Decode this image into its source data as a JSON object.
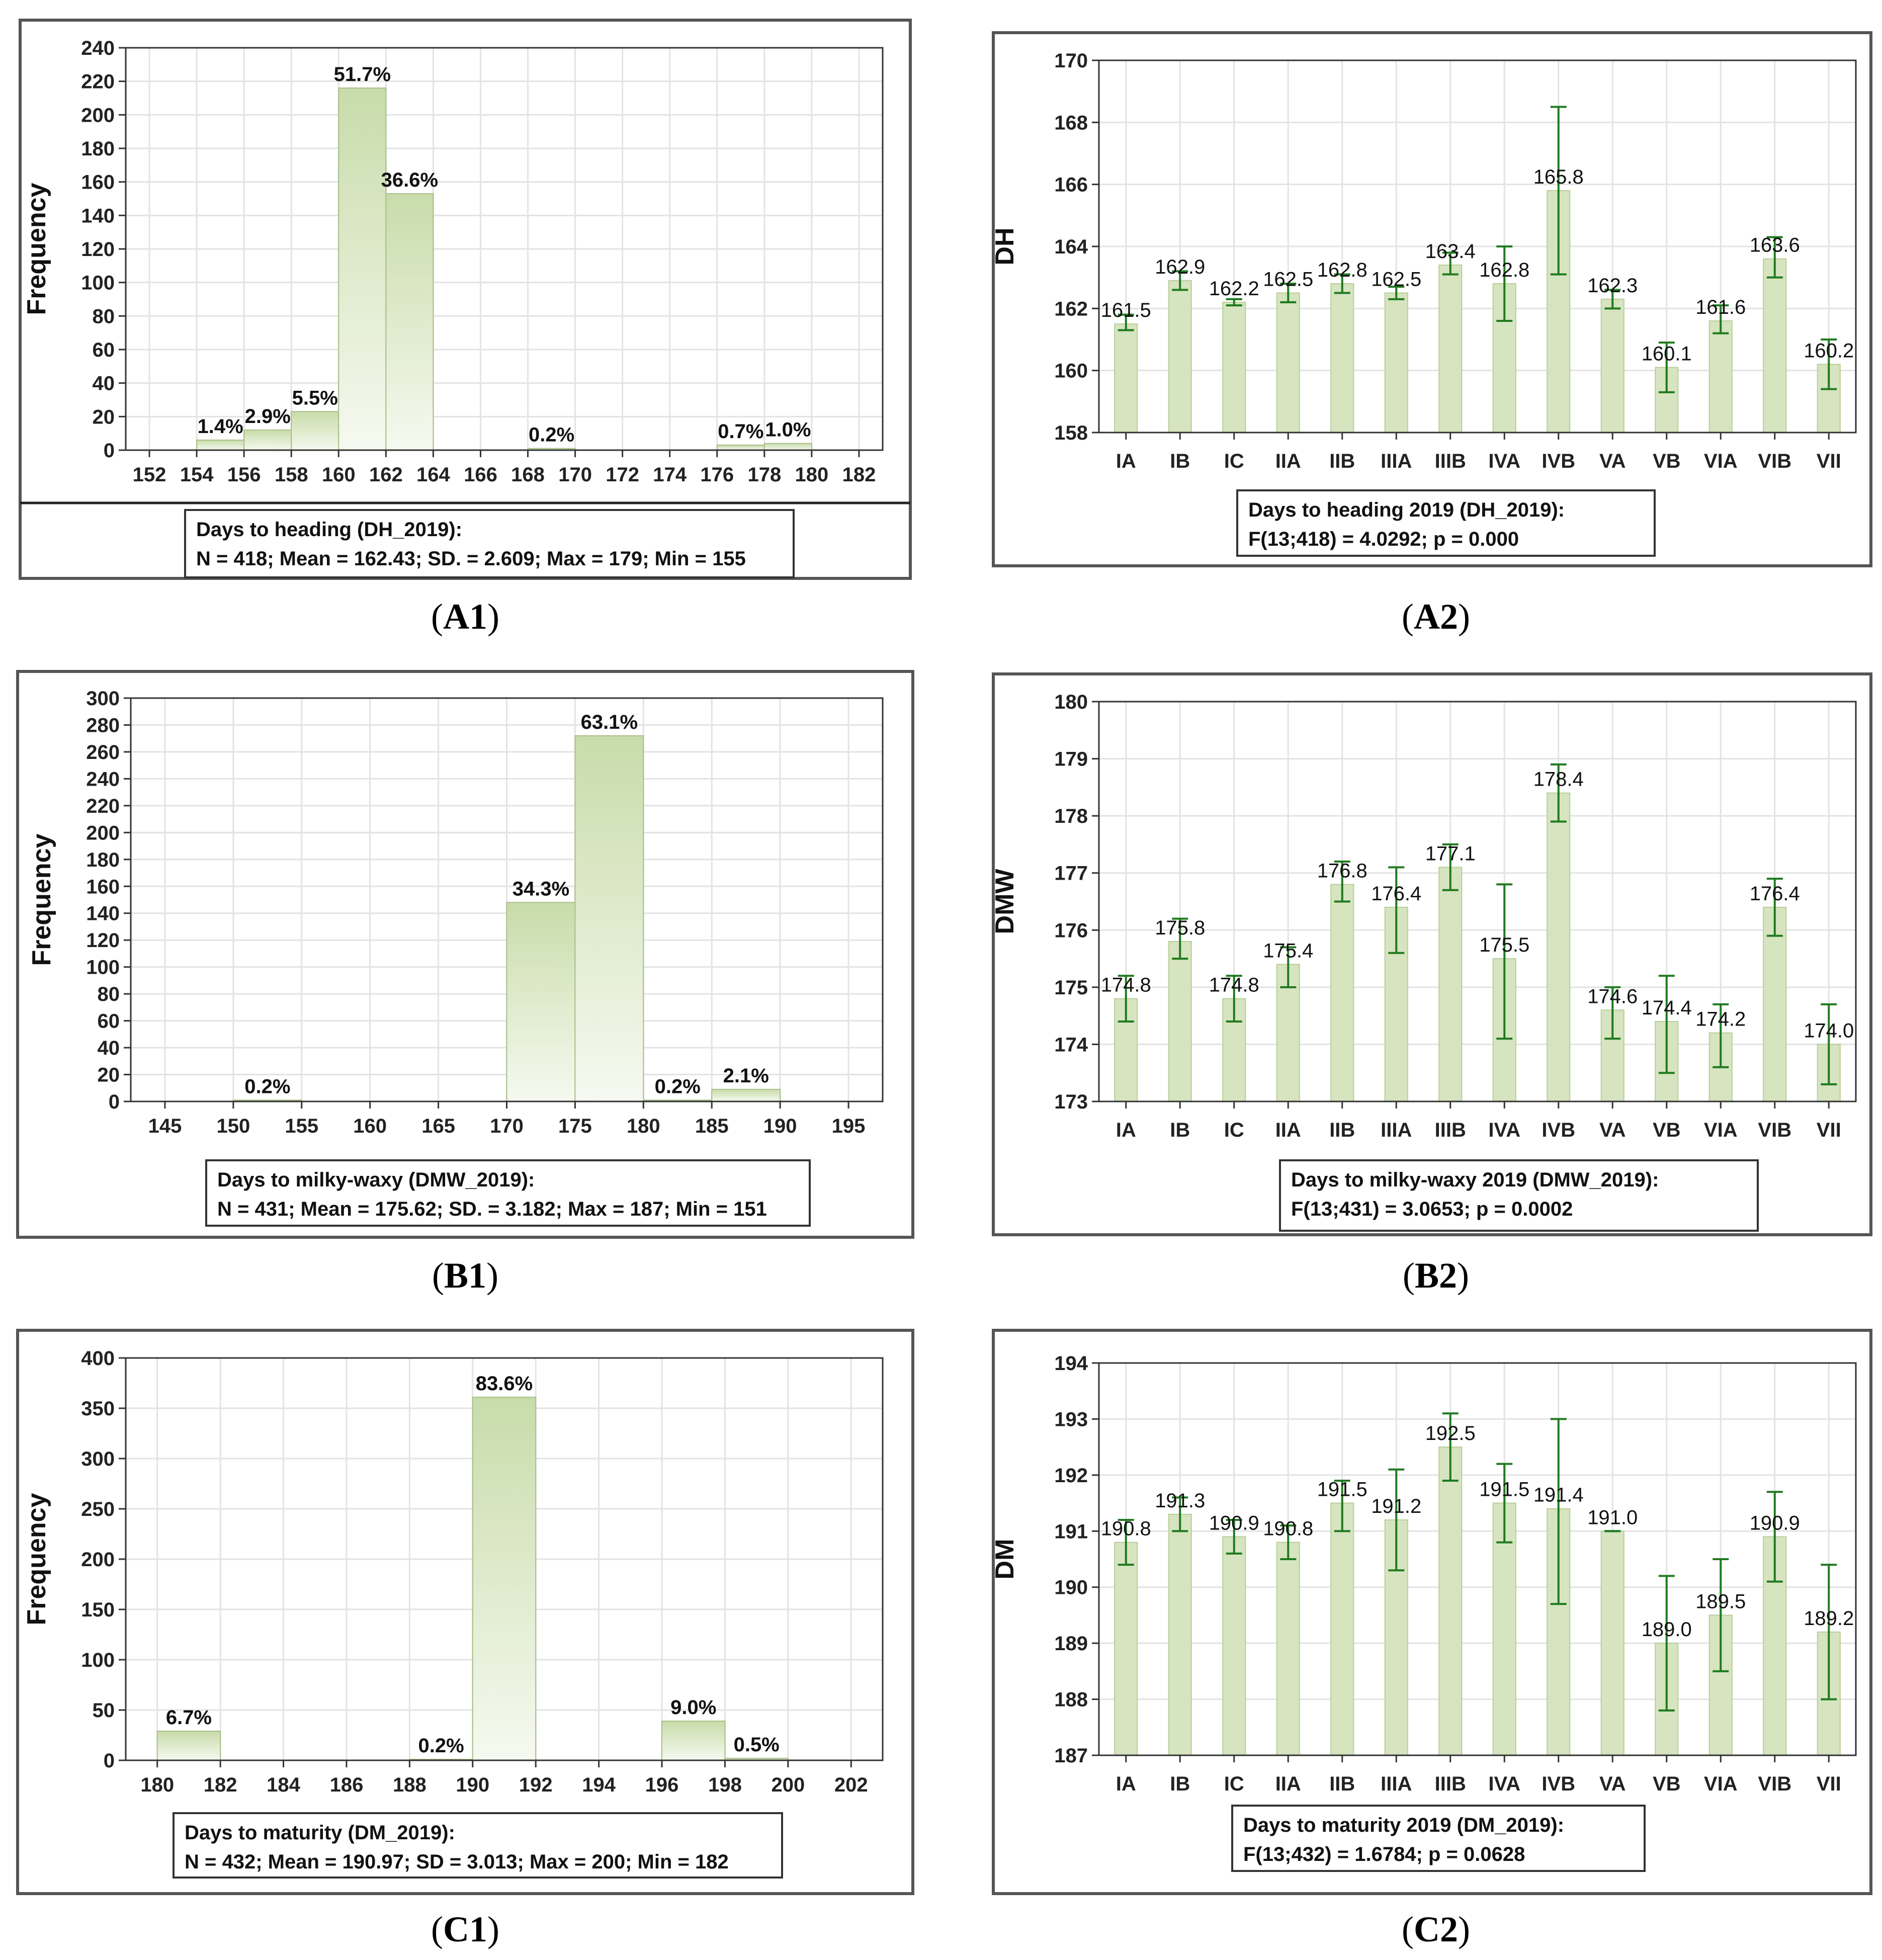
{
  "colors": {
    "bar_fill": "#d6e4bf",
    "bar_top": "#c8dcaa",
    "bar_bottom": "#f6f9f0",
    "errorbar": "#1f7a1f",
    "grid": "#e3e3e3",
    "frame": "#555555"
  },
  "chart_data": [
    {
      "id": "A1",
      "type": "bar",
      "panel_label": "A1",
      "ylabel": "Frequency",
      "ylim": [
        0,
        240
      ],
      "yticks": [
        0,
        20,
        40,
        60,
        80,
        100,
        120,
        140,
        160,
        180,
        200,
        220,
        240
      ],
      "xlim": [
        151,
        183
      ],
      "xticks": [
        152,
        154,
        156,
        158,
        160,
        162,
        164,
        166,
        168,
        170,
        172,
        174,
        176,
        178,
        180,
        182
      ],
      "bins": [
        {
          "x0": 154,
          "x1": 156,
          "value": 6,
          "label": "1.4%"
        },
        {
          "x0": 156,
          "x1": 158,
          "value": 12,
          "label": "2.9%"
        },
        {
          "x0": 158,
          "x1": 160,
          "value": 23,
          "label": "5.5%"
        },
        {
          "x0": 160,
          "x1": 162,
          "value": 216,
          "label": "51.7%"
        },
        {
          "x0": 162,
          "x1": 164,
          "value": 153,
          "label": "36.6%"
        },
        {
          "x0": 168,
          "x1": 170,
          "value": 1,
          "label": "0.2%"
        },
        {
          "x0": 176,
          "x1": 178,
          "value": 3,
          "label": "0.7%"
        },
        {
          "x0": 178,
          "x1": 180,
          "value": 4,
          "label": "1.0%"
        }
      ],
      "stats_title": "Days to heading (DH_2019):",
      "stats_line": "N = 418; Mean = 162.43; SD. = 2.609; Max = 179; Min = 155"
    },
    {
      "id": "B1",
      "type": "bar",
      "panel_label": "B1",
      "ylabel": "Frequency",
      "ylim": [
        0,
        300
      ],
      "yticks": [
        0,
        20,
        40,
        60,
        80,
        100,
        120,
        140,
        160,
        180,
        200,
        220,
        240,
        260,
        280,
        300
      ],
      "xlim": [
        142.5,
        197.5
      ],
      "xticks": [
        145,
        150,
        155,
        160,
        165,
        170,
        175,
        180,
        185,
        190,
        195
      ],
      "bins": [
        {
          "x0": 150,
          "x1": 155,
          "value": 1,
          "label": "0.2%"
        },
        {
          "x0": 170,
          "x1": 175,
          "value": 148,
          "label": "34.3%"
        },
        {
          "x0": 175,
          "x1": 180,
          "value": 272,
          "label": "63.1%"
        },
        {
          "x0": 180,
          "x1": 185,
          "value": 1,
          "label": "0.2%"
        },
        {
          "x0": 185,
          "x1": 190,
          "value": 9,
          "label": "2.1%"
        }
      ],
      "stats_title": "Days to milky-waxy (DMW_2019):",
      "stats_line": "N = 431; Mean = 175.62; SD. = 3.182; Max = 187; Min = 151"
    },
    {
      "id": "C1",
      "type": "bar",
      "panel_label": "C1",
      "ylabel": "Frequency",
      "ylim": [
        0,
        400
      ],
      "yticks": [
        0,
        50,
        100,
        150,
        200,
        250,
        300,
        350,
        400
      ],
      "xlim": [
        179,
        203
      ],
      "xticks": [
        180,
        182,
        184,
        186,
        188,
        190,
        192,
        194,
        196,
        198,
        200,
        202
      ],
      "bins": [
        {
          "x0": 180,
          "x1": 182,
          "value": 29,
          "label": "6.7%"
        },
        {
          "x0": 188,
          "x1": 190,
          "value": 1,
          "label": "0.2%"
        },
        {
          "x0": 190,
          "x1": 192,
          "value": 361,
          "label": "83.6%"
        },
        {
          "x0": 196,
          "x1": 198,
          "value": 39,
          "label": "9.0%"
        },
        {
          "x0": 198,
          "x1": 200,
          "value": 2,
          "label": "0.5%"
        }
      ],
      "stats_title": "Days to maturity (DM_2019):",
      "stats_line": "N = 432; Mean = 190.97; SD = 3.013; Max = 200; Min = 182"
    },
    {
      "id": "A2",
      "type": "bar",
      "panel_label": "A2",
      "ylabel": "DH",
      "ylim": [
        158,
        170
      ],
      "yticks": [
        158,
        160,
        162,
        164,
        166,
        168,
        170
      ],
      "categories": [
        "IA",
        "IB",
        "IC",
        "IIA",
        "IIB",
        "IIIA",
        "IIIB",
        "IVA",
        "IVB",
        "VA",
        "VB",
        "VIA",
        "VIB",
        "VII"
      ],
      "values": [
        161.5,
        162.9,
        162.2,
        162.5,
        162.8,
        162.5,
        163.4,
        162.8,
        165.8,
        162.3,
        160.1,
        161.6,
        163.6,
        160.2
      ],
      "labels": [
        "161.5",
        "162.9",
        "162.2",
        "162.5",
        "162.8",
        "162.5",
        "163.4",
        "162.8",
        "165.8",
        "162.3",
        "160.1",
        "161.6",
        "163.6",
        "160.2"
      ],
      "err_low": [
        161.3,
        162.6,
        162.1,
        162.2,
        162.5,
        162.3,
        163.1,
        161.6,
        163.1,
        162.0,
        159.3,
        161.2,
        163.0,
        159.4
      ],
      "err_high": [
        161.8,
        163.2,
        162.3,
        162.8,
        163.1,
        162.7,
        163.8,
        164.0,
        168.5,
        162.6,
        160.9,
        162.1,
        164.3,
        161.0
      ],
      "stats_title": "Days to heading 2019 (DH_2019):",
      "stats_line": "F(13;418) = 4.0292; p = 0.000"
    },
    {
      "id": "B2",
      "type": "bar",
      "panel_label": "B2",
      "ylabel": "DMW",
      "ylim": [
        173,
        180
      ],
      "yticks": [
        173,
        174,
        175,
        176,
        177,
        178,
        179,
        180
      ],
      "categories": [
        "IA",
        "IB",
        "IC",
        "IIA",
        "IIB",
        "IIIA",
        "IIIB",
        "IVA",
        "IVB",
        "VA",
        "VB",
        "VIA",
        "VIB",
        "VII"
      ],
      "values": [
        174.8,
        175.8,
        174.8,
        175.4,
        176.8,
        176.4,
        177.1,
        175.5,
        178.4,
        174.6,
        174.4,
        174.2,
        176.4,
        174.0
      ],
      "labels": [
        "174.8",
        "175.8",
        "174.8",
        "175.4",
        "176.8",
        "176.4",
        "177.1",
        "175.5",
        "178.4",
        "174.6",
        "174.4",
        "174.2",
        "176.4",
        "174.0"
      ],
      "err_low": [
        174.4,
        175.5,
        174.4,
        175.0,
        176.5,
        175.6,
        176.7,
        174.1,
        177.9,
        174.1,
        173.5,
        173.6,
        175.9,
        173.3
      ],
      "err_high": [
        175.2,
        176.2,
        175.2,
        175.7,
        177.2,
        177.1,
        177.5,
        176.8,
        178.9,
        175.0,
        175.2,
        174.7,
        176.9,
        174.7
      ],
      "stats_title": "Days to milky-waxy 2019 (DMW_2019):",
      "stats_line": "F(13;431) = 3.0653; p = 0.0002"
    },
    {
      "id": "C2",
      "type": "bar",
      "panel_label": "C2",
      "ylabel": "DM",
      "ylim": [
        187,
        194
      ],
      "yticks": [
        187,
        188,
        189,
        190,
        191,
        192,
        193,
        194
      ],
      "categories": [
        "IA",
        "IB",
        "IC",
        "IIA",
        "IIB",
        "IIIA",
        "IIIB",
        "IVA",
        "IVB",
        "VA",
        "VB",
        "VIA",
        "VIB",
        "VII"
      ],
      "values": [
        190.8,
        191.3,
        190.9,
        190.8,
        191.5,
        191.2,
        192.5,
        191.5,
        191.4,
        191.0,
        189.0,
        189.5,
        190.9,
        189.2
      ],
      "labels": [
        "190.8",
        "191.3",
        "190.9",
        "190.8",
        "191.5",
        "191.2",
        "192.5",
        "191.5",
        "191.4",
        "191.0",
        "189.0",
        "189.5",
        "190.9",
        "189.2"
      ],
      "err_low": [
        190.4,
        191.0,
        190.6,
        190.5,
        191.0,
        190.3,
        191.9,
        190.8,
        189.7,
        191.0,
        187.8,
        188.5,
        190.1,
        188.0
      ],
      "err_high": [
        191.2,
        191.6,
        191.2,
        191.1,
        191.9,
        192.1,
        193.1,
        192.2,
        193.0,
        191.0,
        190.2,
        190.5,
        191.7,
        190.4
      ],
      "stats_title": "Days to maturity 2019 (DM_2019):",
      "stats_line": "F(13;432) = 1.6784; p = 0.0628"
    }
  ]
}
